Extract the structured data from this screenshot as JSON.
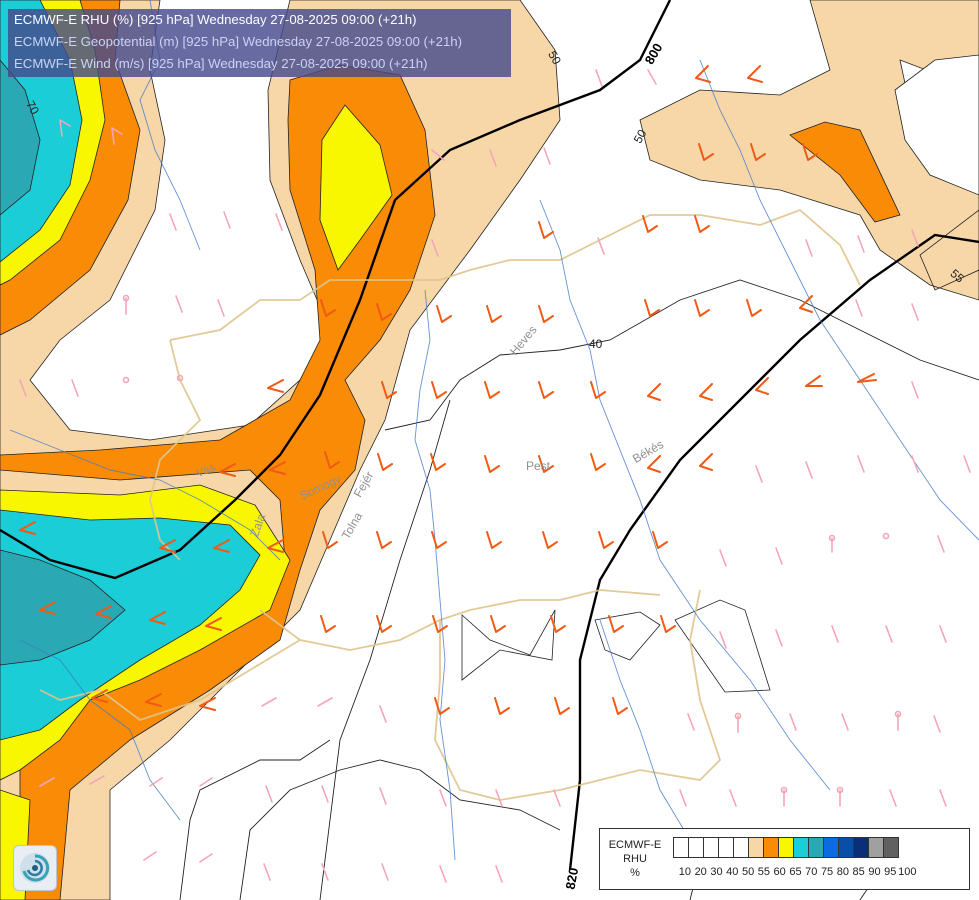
{
  "header": {
    "line1": "ECMWF-E RHU (%) [925 hPa] Wednesday 27-08-2025 09:00 (+21h)",
    "line2": "ECMWF-E Geopotential (m) [925 hPa] Wednesday 27-08-2025 09:00 (+21h)",
    "line3": "ECMWF-E Wind (m/s) [925 hPa] Wednesday 27-08-2025 09:00 (+21h)"
  },
  "legend": {
    "title_line1": "ECMWF-E",
    "title_line2": "RHU",
    "title_line3": "%",
    "ticks": [
      "10",
      "20",
      "30",
      "40",
      "50",
      "55",
      "60",
      "65",
      "70",
      "75",
      "80",
      "85",
      "90",
      "95",
      "100"
    ],
    "colors": [
      "#ffffff",
      "#ffffff",
      "#ffffff",
      "#ffffff",
      "#ffffff",
      "#f7d7a8",
      "#f98b06",
      "#f9f700",
      "#1acdd6",
      "#2aa8b4",
      "#0a6ce0",
      "#0b4ea8",
      "#0a2e78",
      "#a0a0a0",
      "#606060"
    ]
  },
  "geopotential_labels": {
    "top": "800",
    "bottom": "820"
  },
  "rhu_labels": {
    "a": "50",
    "b": "50",
    "c": "55",
    "d": "40",
    "e": "70"
  },
  "region_labels": {
    "pest": "Pest",
    "bekes": "Békés",
    "heves": "Heves",
    "vas": "Vas",
    "fejer": "Fejér",
    "tolna": "Tolna",
    "zala": "Zala",
    "somogy": "Somogy"
  },
  "colors": {
    "light_orange": "#f7d7a8",
    "orange": "#f98b06",
    "yellow": "#f9f700",
    "cyan": "#1acdd6",
    "teal": "#2aa8b4",
    "wind_orange": "#f05a14",
    "wind_pink": "#f4a6b8",
    "river": "#3f78c8",
    "border": "#e0c48c"
  },
  "logo": "ecmwf-logo-icon"
}
